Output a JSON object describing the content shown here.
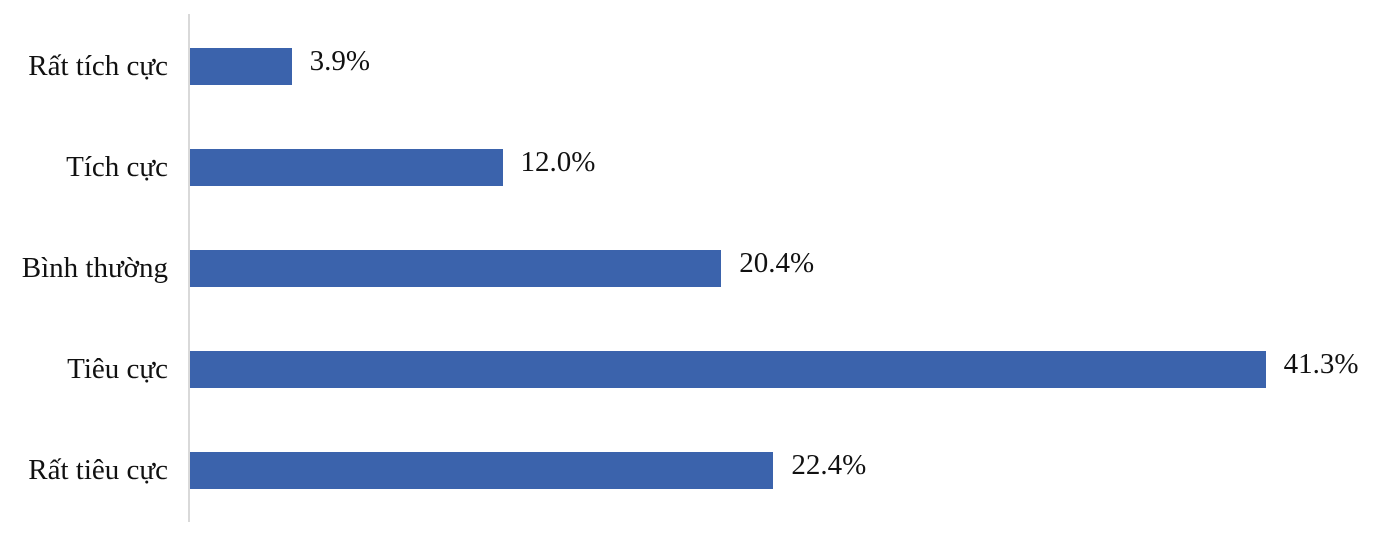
{
  "chart_data": {
    "type": "bar",
    "orientation": "horizontal",
    "title": "",
    "xlabel": "",
    "ylabel": "",
    "categories": [
      "Rất tích cực",
      "Tích cực",
      "Bình thường",
      "Tiêu cực",
      "Rất tiêu cực"
    ],
    "values": [
      3.9,
      12.0,
      20.4,
      41.3,
      22.4
    ],
    "value_labels": [
      "3.9%",
      "12.0%",
      "20.4%",
      "41.3%",
      "22.4%"
    ],
    "xlim": [
      0,
      45.5
    ],
    "grid": false,
    "legend": false,
    "bar_color": "#3b63ac",
    "axis_line_color": "#d9d9d9",
    "text_color": "#111111"
  }
}
